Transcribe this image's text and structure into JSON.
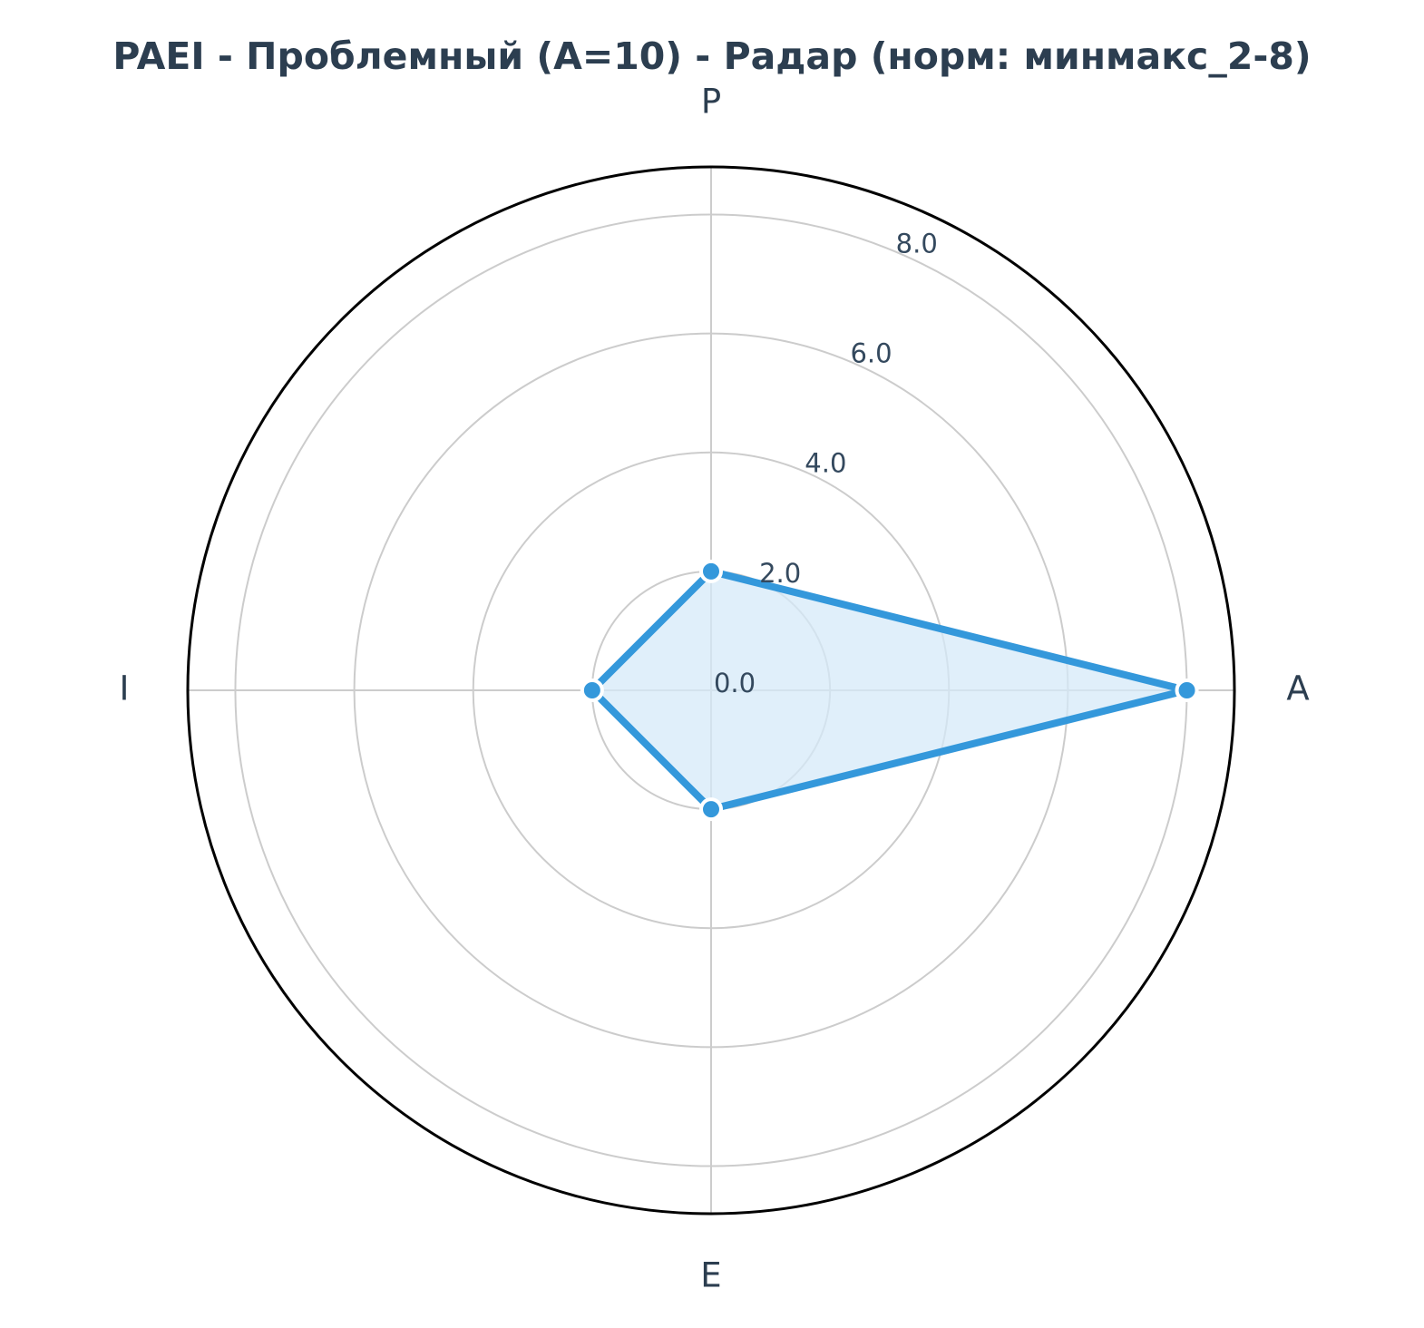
{
  "chart_data": {
    "type": "radar",
    "title": "PAEI - Проблемный (A=10) - Радар (норм: минмакс_2-8)",
    "axes": [
      "P",
      "A",
      "E",
      "I"
    ],
    "values": [
      2.0,
      8.0,
      2.0,
      2.0
    ],
    "r_ticks": [
      "0.0",
      "2.0",
      "4.0",
      "6.0",
      "8.0"
    ],
    "r_tick_values": [
      0,
      2,
      4,
      6,
      8
    ],
    "rlim": [
      0,
      8.8
    ],
    "grid": true,
    "colors": {
      "line": "#3498db",
      "fill": "#d6e9f8",
      "grid": "#cccccc",
      "outline": "#000000",
      "text": "#2c3e50"
    }
  }
}
